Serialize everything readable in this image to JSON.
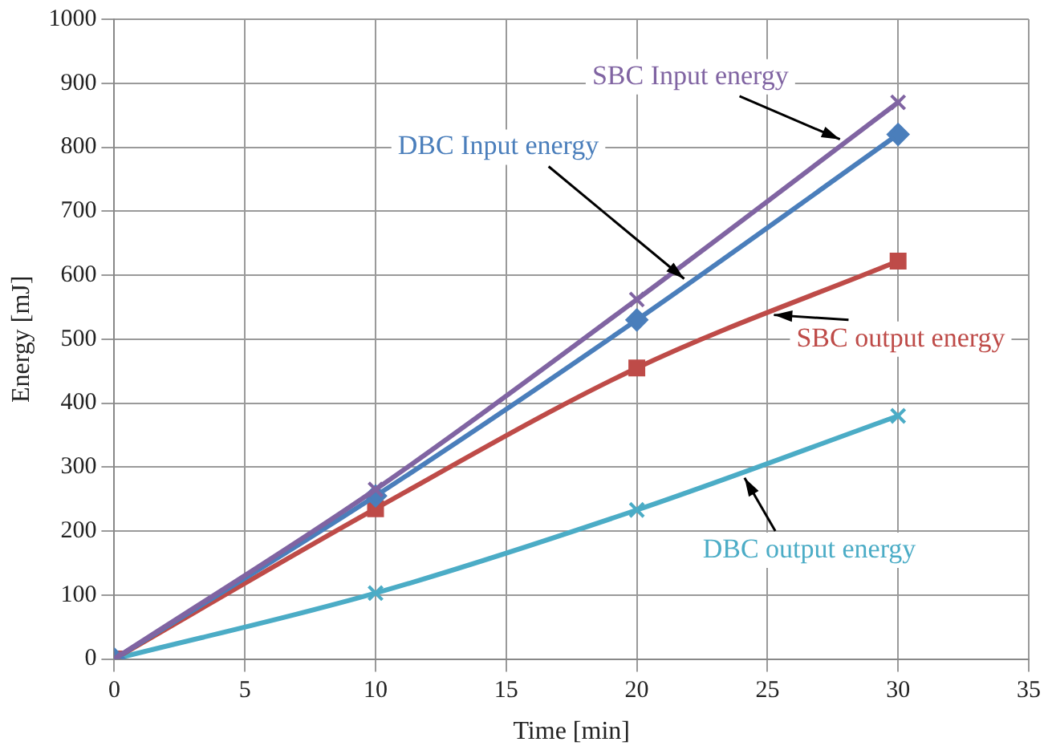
{
  "chart_data": {
    "type": "line",
    "xlabel": "Time [min]",
    "ylabel": "Energy [mJ]",
    "xlim": [
      0,
      35
    ],
    "xticks": [
      0,
      5,
      10,
      15,
      20,
      25,
      30,
      35
    ],
    "ylim": [
      0,
      1000
    ],
    "yticks": [
      0,
      100,
      200,
      300,
      400,
      500,
      600,
      700,
      800,
      900,
      1000
    ],
    "grid": true,
    "legend": false,
    "line_style": "solid",
    "x": [
      0,
      10,
      20,
      30
    ],
    "series": [
      {
        "name": "SBC Input energy",
        "color": "#8064a2",
        "marker": "cross",
        "values": [
          0,
          265,
          562,
          870
        ]
      },
      {
        "name": "DBC Input energy",
        "color": "#4a7ebb",
        "marker": "diamond",
        "values": [
          0,
          255,
          530,
          820
        ]
      },
      {
        "name": "SBC output energy",
        "color": "#be4b48",
        "marker": "square",
        "values": [
          0,
          235,
          455,
          622
        ]
      },
      {
        "name": "DBC output energy",
        "color": "#4bacc6",
        "marker": "cross",
        "values": [
          0,
          103,
          233,
          380
        ]
      }
    ]
  }
}
